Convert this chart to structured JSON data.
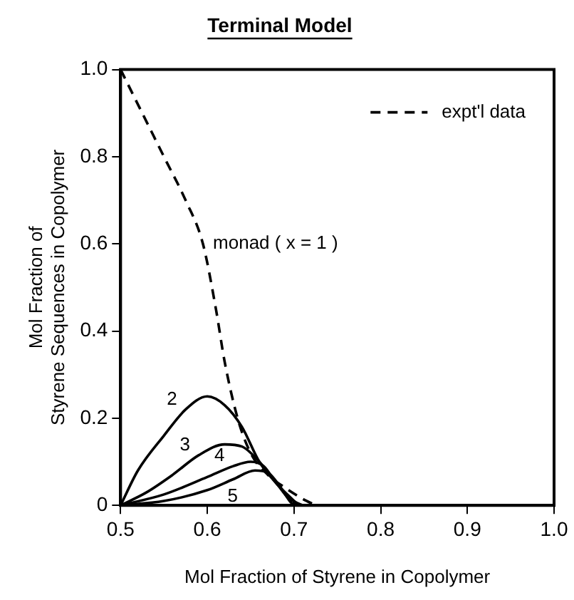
{
  "chart_data": {
    "type": "line",
    "title": "Terminal Model",
    "xlabel": "Mol Fraction of Styrene in Copolymer",
    "ylabel": "Mol Fraction of\nStyrene Sequences in Copolymer",
    "xlim": [
      0.5,
      1.0
    ],
    "xticks": [
      0.5,
      0.6,
      0.7,
      0.8,
      0.9,
      {
        "value": 1.0,
        "label": "1.0"
      }
    ],
    "ylim": [
      0,
      1.0
    ],
    "yticks": [
      0,
      0.2,
      0.4,
      0.6,
      0.8,
      {
        "value": 1.0,
        "label": "1.0"
      }
    ],
    "grid": false,
    "legend": "top right",
    "marker": "none",
    "annotations": [
      {
        "text": "monad ( x = 1 )",
        "x": 0.6,
        "y": 0.6
      }
    ],
    "series": [
      {
        "name": "expt'l data",
        "color": "#000000",
        "line_style": "dashed",
        "x": [
          0.5,
          0.525,
          0.55,
          0.575,
          0.595,
          0.61,
          0.62,
          0.635,
          0.65,
          0.67,
          0.69,
          0.71,
          0.725
        ],
        "values": [
          1.0,
          0.9,
          0.8,
          0.7,
          0.6,
          0.45,
          0.33,
          0.2,
          0.12,
          0.07,
          0.04,
          0.015,
          0
        ]
      },
      {
        "name": "2",
        "color": "#000000",
        "line_style": "solid",
        "x": [
          0.5,
          0.52,
          0.55,
          0.575,
          0.6,
          0.62,
          0.64,
          0.66,
          0.68,
          0.7,
          0.71
        ],
        "values": [
          0,
          0.08,
          0.16,
          0.22,
          0.25,
          0.23,
          0.18,
          0.1,
          0.05,
          0.01,
          0
        ]
      },
      {
        "name": "3",
        "color": "#000000",
        "line_style": "solid",
        "x": [
          0.5,
          0.53,
          0.56,
          0.59,
          0.62,
          0.64,
          0.66,
          0.68,
          0.7,
          0.705
        ],
        "values": [
          0,
          0.03,
          0.07,
          0.115,
          0.14,
          0.135,
          0.1,
          0.05,
          0.01,
          0
        ]
      },
      {
        "name": "4",
        "color": "#000000",
        "line_style": "solid",
        "x": [
          0.5,
          0.55,
          0.6,
          0.63,
          0.65,
          0.665,
          0.68,
          0.7,
          0.7
        ],
        "values": [
          0,
          0.025,
          0.065,
          0.09,
          0.1,
          0.09,
          0.05,
          0.01,
          0
        ]
      },
      {
        "name": "5",
        "color": "#000000",
        "line_style": "solid",
        "x": [
          0.5,
          0.55,
          0.6,
          0.63,
          0.655,
          0.67,
          0.685,
          0.695,
          0.7
        ],
        "values": [
          0,
          0.01,
          0.035,
          0.06,
          0.08,
          0.075,
          0.04,
          0.01,
          0
        ]
      }
    ]
  }
}
